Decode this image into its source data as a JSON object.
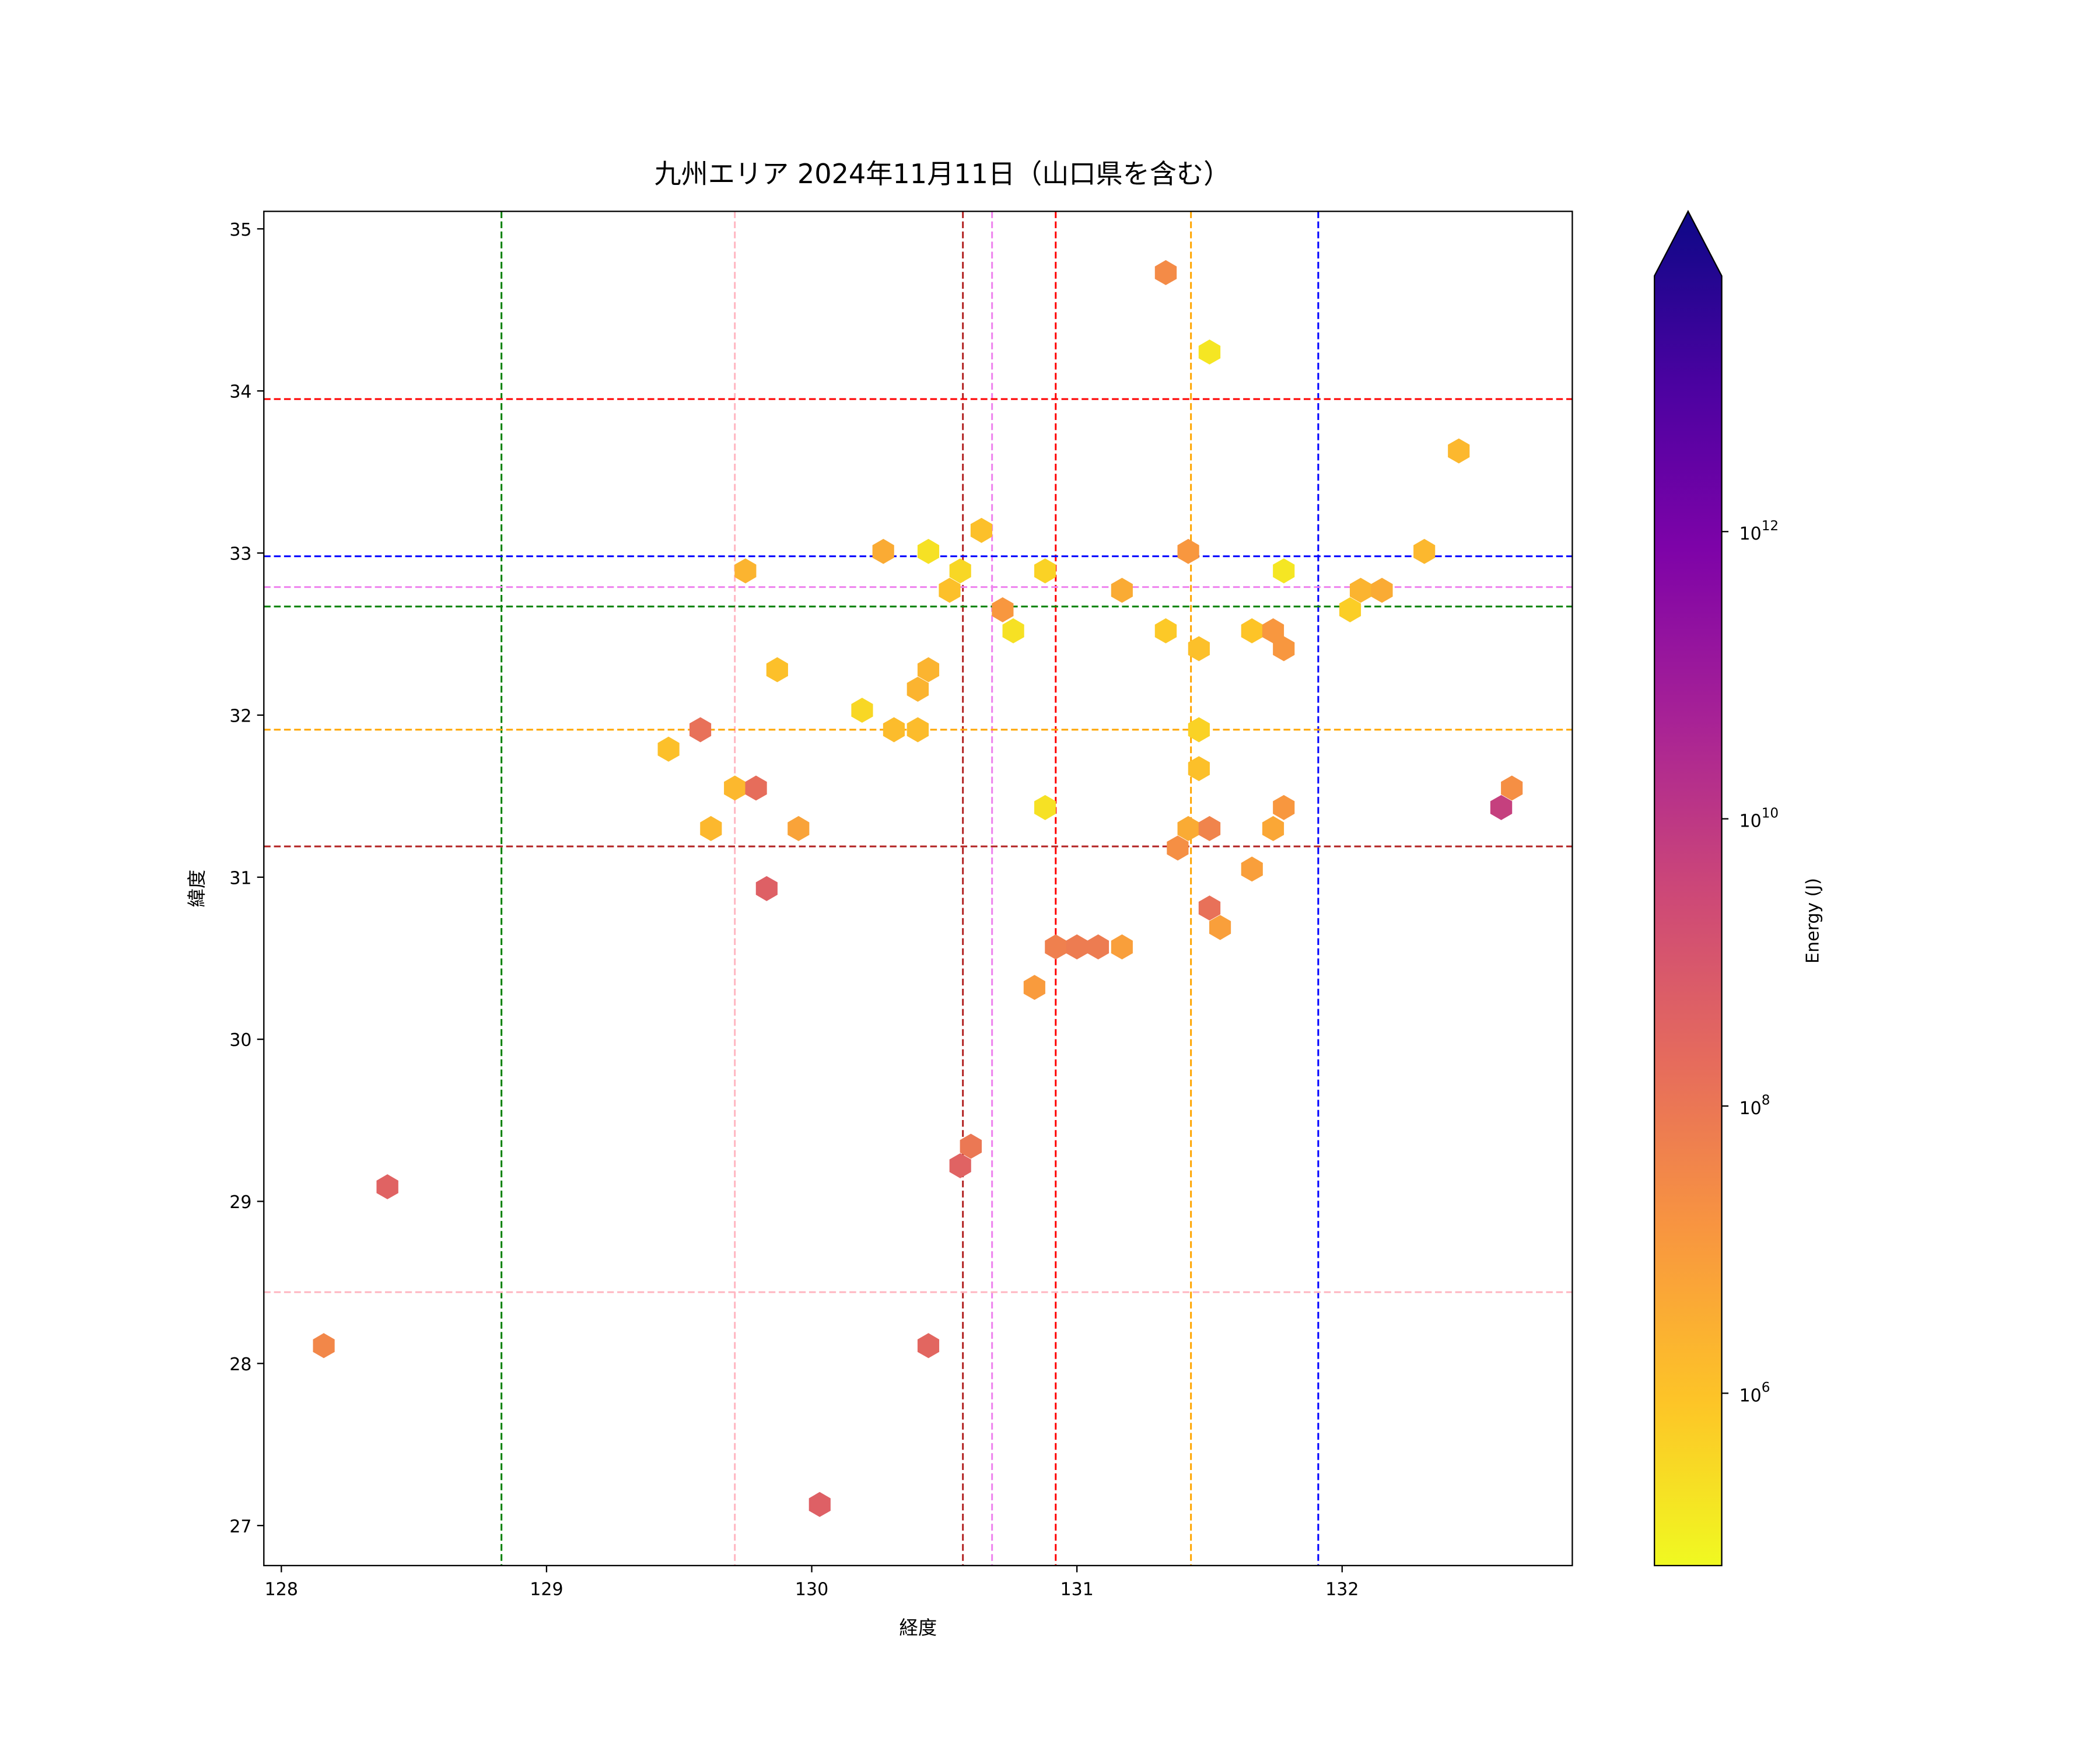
{
  "chart_data": {
    "type": "scatter",
    "marker": "hexbin",
    "title": "九州エリア 2024年11月11日（山口県を含む）",
    "xlabel": "経度",
    "ylabel": "緯度",
    "xlim": [
      127.934,
      132.868
    ],
    "ylim": [
      26.753,
      35.108
    ],
    "xticks": [
      128,
      129,
      130,
      131,
      132
    ],
    "yticks": [
      27,
      28,
      29,
      30,
      31,
      32,
      33,
      34,
      35
    ],
    "grid": false,
    "colorbar": {
      "label": "Energy (J)",
      "scale": "log",
      "colormap": "plasma_r",
      "log10_range": [
        4.8,
        13.78
      ],
      "extend": "max",
      "ticks": [
        {
          "base": "10",
          "exp": "6",
          "v": 6
        },
        {
          "base": "10",
          "exp": "8",
          "v": 8
        },
        {
          "base": "10",
          "exp": "10",
          "v": 10
        },
        {
          "base": "10",
          "exp": "12",
          "v": 12
        }
      ]
    },
    "vlines": [
      {
        "x": 128.83,
        "color": "#008000"
      },
      {
        "x": 129.71,
        "color": "#ffb6c1"
      },
      {
        "x": 130.57,
        "color": "#b22222"
      },
      {
        "x": 130.68,
        "color": "#ee82ee"
      },
      {
        "x": 130.92,
        "color": "#ff0000"
      },
      {
        "x": 131.43,
        "color": "#ffa500"
      },
      {
        "x": 131.91,
        "color": "#0000ff"
      }
    ],
    "hlines": [
      {
        "y": 33.95,
        "color": "#ff0000"
      },
      {
        "y": 32.98,
        "color": "#0000ff"
      },
      {
        "y": 32.79,
        "color": "#ee82ee"
      },
      {
        "y": 32.67,
        "color": "#008000"
      },
      {
        "y": 31.91,
        "color": "#ffa500"
      },
      {
        "y": 31.19,
        "color": "#b22222"
      },
      {
        "y": 28.44,
        "color": "#ffb6c1"
      }
    ],
    "points_columns": [
      "lon",
      "lat",
      "log10_energy"
    ],
    "points": [
      [
        131.335,
        34.73,
        7.3
      ],
      [
        131.5,
        34.24,
        5.2
      ],
      [
        132.44,
        33.63,
        6.2
      ],
      [
        130.27,
        33.01,
        6.5
      ],
      [
        130.44,
        33.01,
        5.3
      ],
      [
        130.64,
        33.14,
        6.0
      ],
      [
        129.75,
        32.89,
        6.3
      ],
      [
        130.56,
        32.89,
        5.5
      ],
      [
        130.88,
        32.89,
        5.6
      ],
      [
        130.52,
        32.77,
        6.0
      ],
      [
        131.17,
        32.77,
        6.5
      ],
      [
        131.42,
        33.01,
        7.0
      ],
      [
        131.78,
        32.89,
        5.2
      ],
      [
        132.31,
        33.01,
        6.2
      ],
      [
        132.07,
        32.77,
        6.3
      ],
      [
        132.15,
        32.77,
        6.5
      ],
      [
        132.03,
        32.65,
        5.7
      ],
      [
        130.72,
        32.65,
        7.0
      ],
      [
        130.76,
        32.52,
        5.3
      ],
      [
        131.335,
        32.52,
        5.8
      ],
      [
        131.66,
        32.52,
        5.9
      ],
      [
        131.74,
        32.52,
        7.0
      ],
      [
        131.46,
        32.41,
        6.0
      ],
      [
        131.78,
        32.41,
        7.0
      ],
      [
        129.87,
        32.28,
        6.0
      ],
      [
        130.44,
        32.28,
        6.3
      ],
      [
        130.4,
        32.16,
        6.3
      ],
      [
        130.19,
        32.03,
        5.5
      ],
      [
        130.31,
        31.91,
        6.1
      ],
      [
        130.4,
        31.91,
        6.1
      ],
      [
        129.58,
        31.91,
        8.0
      ],
      [
        129.46,
        31.79,
        6.0
      ],
      [
        131.46,
        31.91,
        5.6
      ],
      [
        131.46,
        31.67,
        6.0
      ],
      [
        129.71,
        31.55,
        6.2
      ],
      [
        129.79,
        31.55,
        8.1
      ],
      [
        129.62,
        31.3,
        6.2
      ],
      [
        129.95,
        31.3,
        6.7
      ],
      [
        130.88,
        31.43,
        5.3
      ],
      [
        131.42,
        31.3,
        6.5
      ],
      [
        131.5,
        31.3,
        7.5
      ],
      [
        131.74,
        31.3,
        6.6
      ],
      [
        131.78,
        31.43,
        7.0
      ],
      [
        131.38,
        31.18,
        7.2
      ],
      [
        132.64,
        31.55,
        7.2
      ],
      [
        132.6,
        31.43,
        9.5
      ],
      [
        131.66,
        31.05,
        6.8
      ],
      [
        129.83,
        30.93,
        8.5
      ],
      [
        131.5,
        30.81,
        8.0
      ],
      [
        131.54,
        30.69,
        6.8
      ],
      [
        130.92,
        30.57,
        7.6
      ],
      [
        131.0,
        30.57,
        7.7
      ],
      [
        131.08,
        30.57,
        7.7
      ],
      [
        131.17,
        30.57,
        6.8
      ],
      [
        130.84,
        30.32,
        6.9
      ],
      [
        130.6,
        29.34,
        7.8
      ],
      [
        130.56,
        29.22,
        8.4
      ],
      [
        128.4,
        29.09,
        8.4
      ],
      [
        128.16,
        28.11,
        7.4
      ],
      [
        130.44,
        28.11,
        8.3
      ],
      [
        130.03,
        27.13,
        8.5
      ]
    ]
  }
}
